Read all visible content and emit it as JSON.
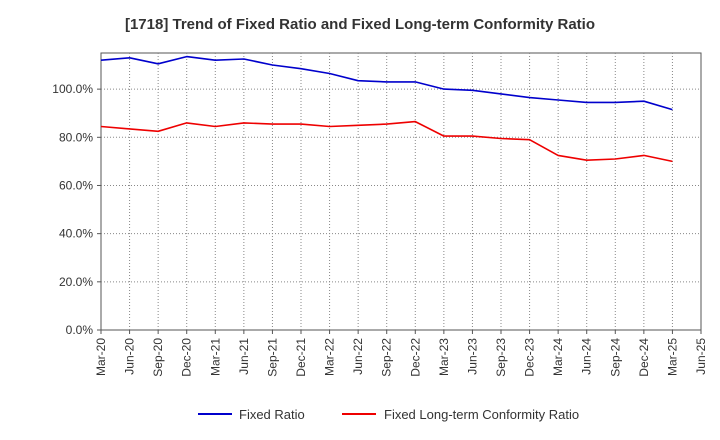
{
  "chart_data": {
    "type": "line",
    "title": "[1718]  Trend of Fixed Ratio and Fixed Long-term Conformity Ratio",
    "xlabel": "",
    "ylabel": "",
    "x": [
      "Mar-20",
      "Jun-20",
      "Sep-20",
      "Dec-20",
      "Mar-21",
      "Jun-21",
      "Sep-21",
      "Dec-21",
      "Mar-22",
      "Jun-22",
      "Sep-22",
      "Dec-22",
      "Mar-23",
      "Jun-23",
      "Sep-23",
      "Dec-23",
      "Mar-24",
      "Jun-24",
      "Sep-24",
      "Dec-24",
      "Mar-25",
      "Jun-25"
    ],
    "ylim": [
      0,
      115
    ],
    "y_ticks": [
      0,
      20,
      40,
      60,
      80,
      100
    ],
    "y_tick_labels": [
      "0.0%",
      "20.0%",
      "40.0%",
      "60.0%",
      "80.0%",
      "100.0%"
    ],
    "grid": true,
    "legend_position": "bottom",
    "series": [
      {
        "name": "Fixed Ratio",
        "color": "#0000cc",
        "values": [
          112.0,
          113.0,
          110.5,
          113.5,
          112.0,
          112.5,
          110.0,
          108.5,
          106.5,
          103.5,
          103.0,
          103.0,
          100.0,
          99.5,
          98.0,
          96.5,
          95.5,
          94.5,
          94.5,
          95.0,
          91.5,
          null
        ]
      },
      {
        "name": "Fixed Long-term Conformity Ratio",
        "color": "#ee0000",
        "values": [
          84.5,
          83.5,
          82.5,
          86.0,
          84.5,
          86.0,
          85.5,
          85.5,
          84.5,
          85.0,
          85.5,
          86.5,
          80.5,
          80.5,
          79.5,
          79.0,
          72.5,
          70.5,
          71.0,
          72.5,
          70.0,
          null
        ]
      }
    ]
  }
}
